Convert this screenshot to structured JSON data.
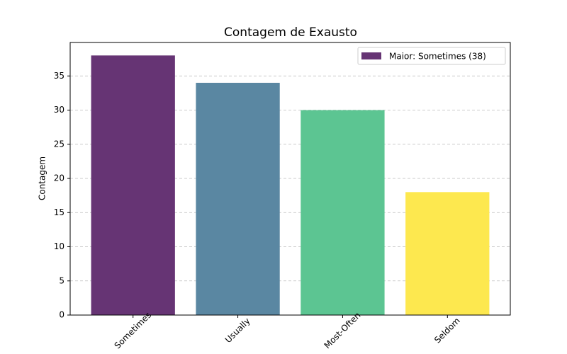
{
  "chart_data": {
    "type": "bar",
    "title": "Contagem de Exausto",
    "y_label": "Contagem",
    "categories": [
      "Sometimes",
      "Usually",
      "Most-Often",
      "Seldom"
    ],
    "values": [
      38,
      34,
      30,
      18
    ],
    "colors": [
      "#663474",
      "#5a87a2",
      "#5cc592",
      "#fde84f"
    ],
    "legend": {
      "label": "Maior: Sometimes (38)",
      "color": "#663474",
      "position": "upper right"
    },
    "ylim": [
      0,
      39.9
    ],
    "yticks": [
      0,
      5,
      10,
      15,
      20,
      25,
      30,
      35
    ],
    "grid": true
  }
}
